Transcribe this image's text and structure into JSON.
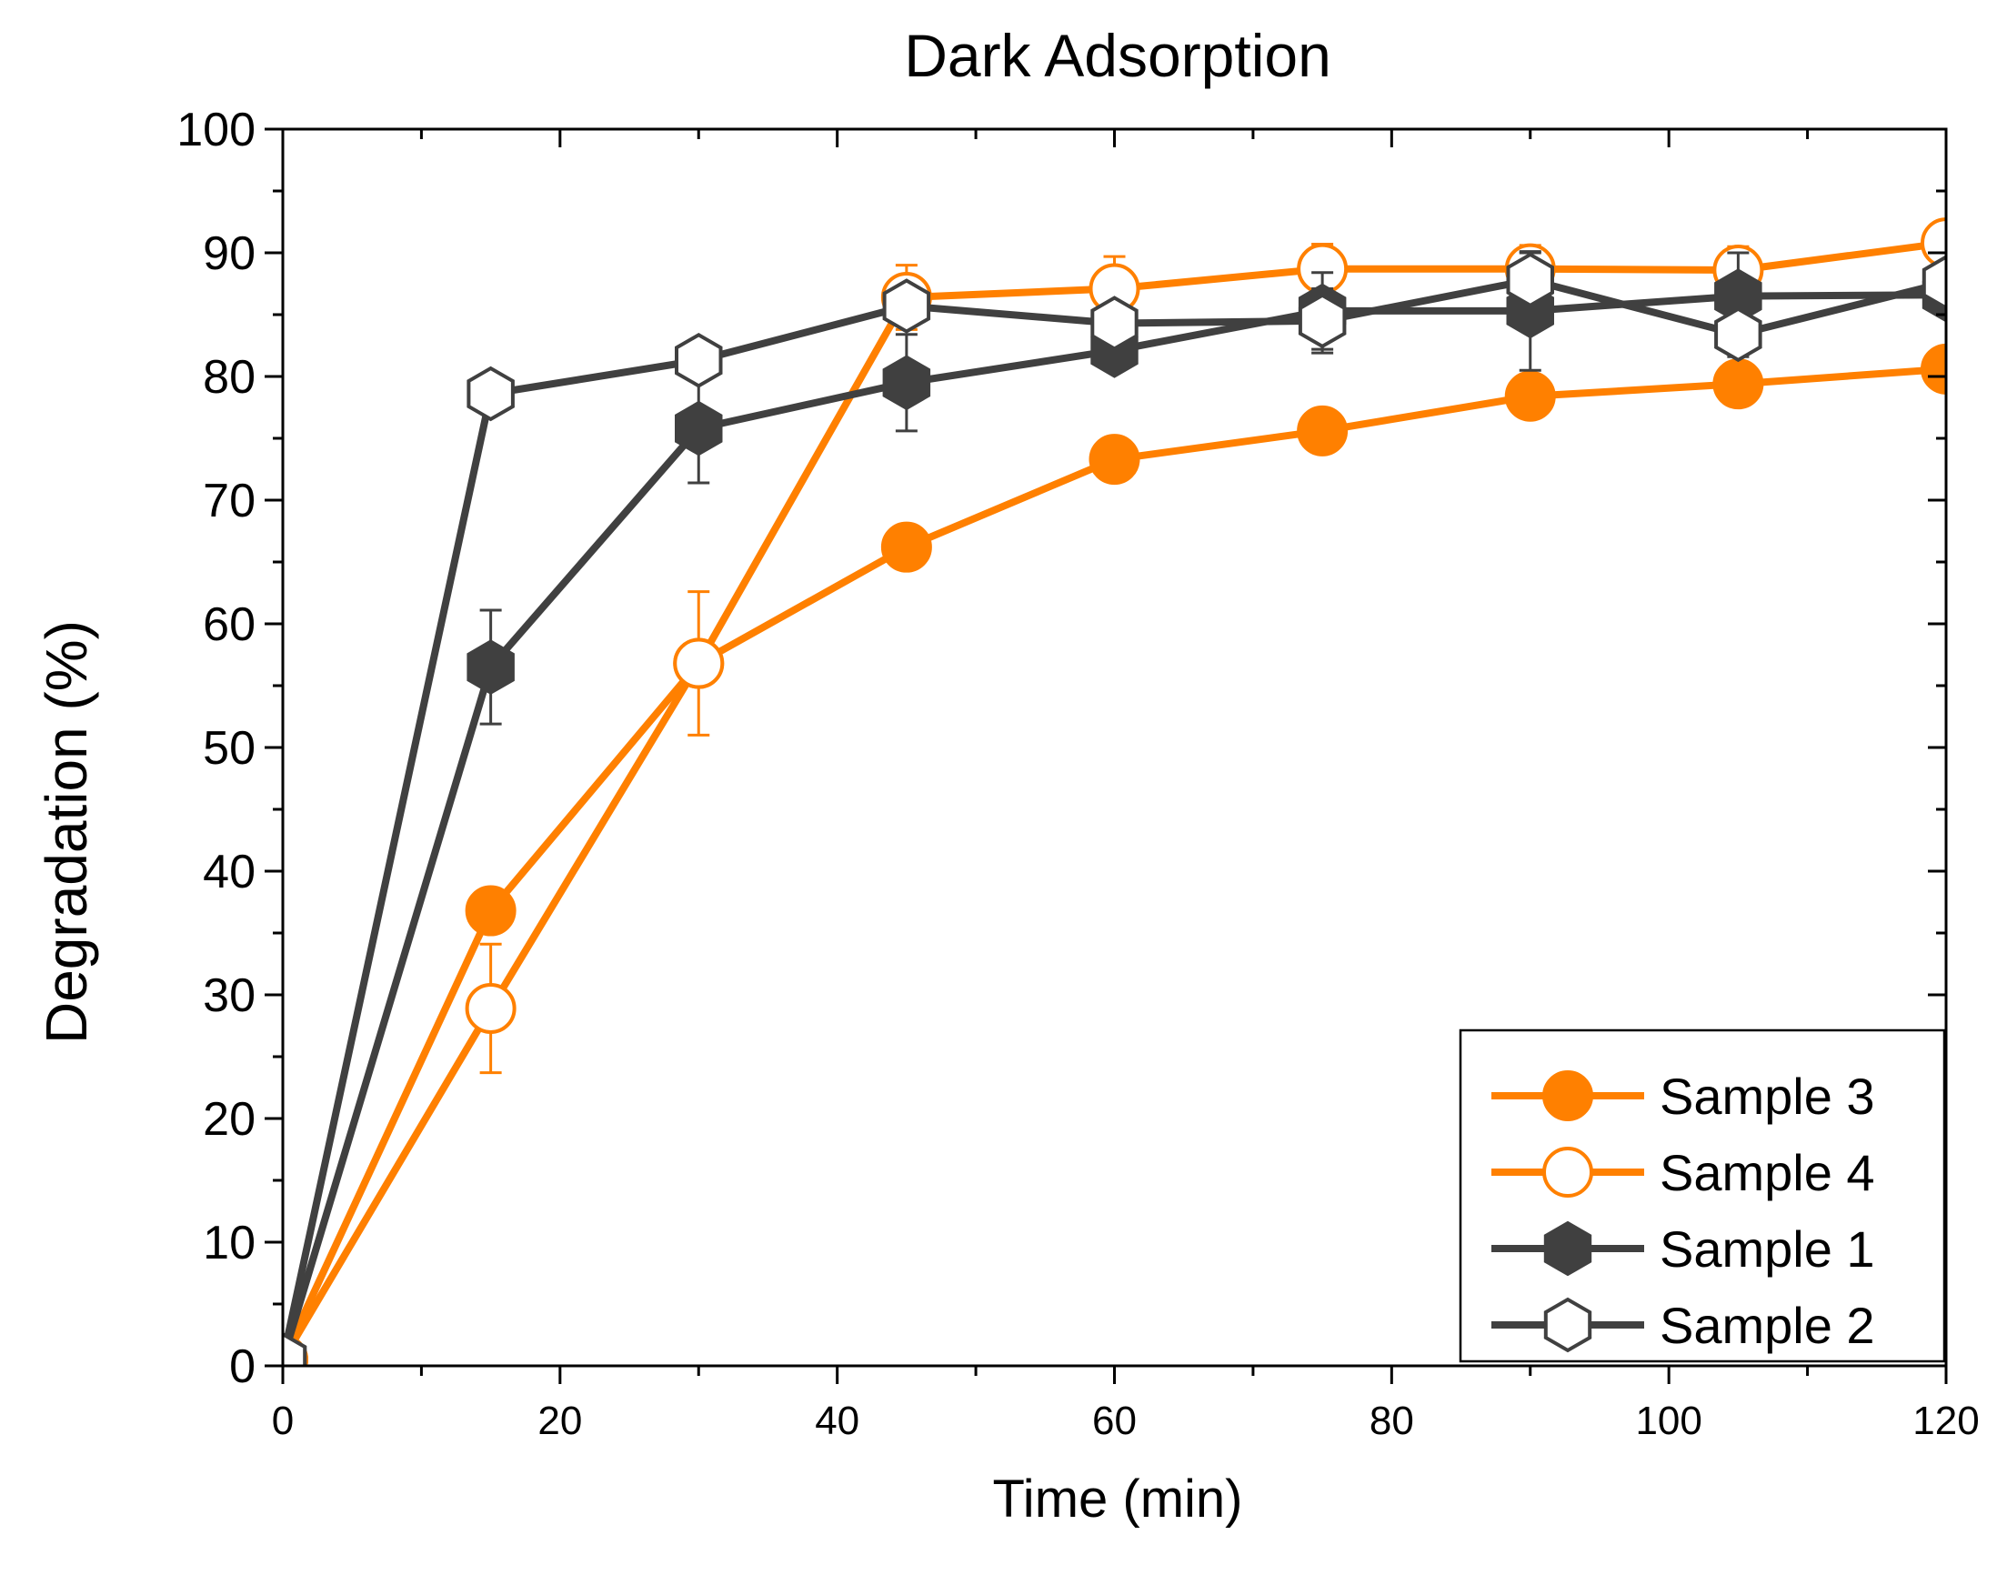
{
  "chart_data": {
    "type": "line",
    "title": "Dark Adsorption",
    "xlabel": "Time (min)",
    "ylabel": "Degradation (%)",
    "xlim": [
      0,
      120
    ],
    "ylim": [
      0,
      100
    ],
    "x_ticks": [
      0,
      20,
      40,
      60,
      80,
      100,
      120
    ],
    "y_ticks": [
      0,
      10,
      20,
      30,
      40,
      50,
      60,
      70,
      80,
      90,
      100
    ],
    "legend_position": "bottom-right",
    "x": [
      0,
      15,
      30,
      45,
      60,
      75,
      90,
      105,
      120
    ],
    "series": [
      {
        "name": "Sample 3",
        "color": "#ff8000",
        "marker": "circle",
        "filled": true,
        "values": [
          0.5,
          36.8,
          56.8,
          66.2,
          73.3,
          75.6,
          78.4,
          79.4,
          80.6
        ],
        "errors": [
          0,
          0,
          0,
          0,
          0,
          0,
          0,
          0,
          0
        ]
      },
      {
        "name": "Sample 4",
        "color": "#ff8000",
        "marker": "circle",
        "filled": false,
        "values": [
          0.5,
          28.9,
          56.8,
          86.4,
          87.1,
          88.7,
          88.7,
          88.6,
          90.8
        ],
        "errors": [
          0,
          5.2,
          5.8,
          2.6,
          2.6,
          2.0,
          1.9,
          1.9,
          1.0
        ]
      },
      {
        "name": "Sample 1",
        "color": "#404040",
        "marker": "hexagon",
        "filled": true,
        "values": [
          0.5,
          56.5,
          75.8,
          79.5,
          82.1,
          85.3,
          85.3,
          86.5,
          86.6
        ],
        "errors": [
          0,
          4.6,
          4.4,
          3.9,
          1.5,
          3.1,
          4.8,
          3.5,
          1.2
        ]
      },
      {
        "name": "Sample 2",
        "color": "#404040",
        "marker": "hexagon",
        "filled": false,
        "values": [
          0.5,
          78.6,
          81.3,
          85.7,
          84.3,
          84.5,
          87.8,
          83.4,
          87.6
        ],
        "errors": [
          0,
          0.8,
          1.2,
          1.2,
          0.8,
          2.6,
          2.2,
          1.8,
          1.5
        ]
      }
    ]
  }
}
